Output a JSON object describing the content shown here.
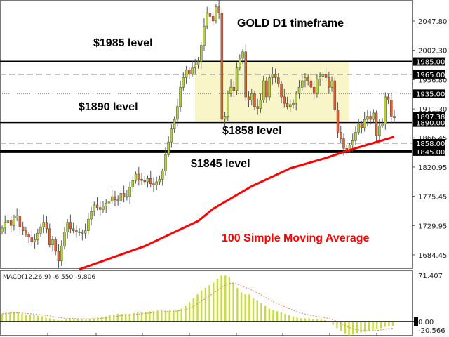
{
  "chart_data": {
    "type": "candlestick",
    "title": "GOLD D1 timeframe",
    "symbol": "GOLD",
    "timeframe": "D1",
    "price_axis": {
      "ylim": [
        1662,
        2075
      ],
      "ticks": [
        "2047.80",
        "2002.30",
        "1956.80",
        "1911.30",
        "1866.45",
        "1820.95",
        "1775.45",
        "1729.95",
        "1684.45"
      ]
    },
    "closes": [
      1726,
      1735,
      1738,
      1730,
      1742,
      1745,
      1728,
      1722,
      1716,
      1712,
      1705,
      1708,
      1718,
      1728,
      1735,
      1725,
      1700,
      1708,
      1690,
      1675,
      1698,
      1720,
      1735,
      1725,
      1722,
      1720,
      1720,
      1718,
      1722,
      1740,
      1752,
      1762,
      1758,
      1755,
      1760,
      1765,
      1768,
      1775,
      1770,
      1768,
      1780,
      1775,
      1775,
      1790,
      1800,
      1810,
      1802,
      1800,
      1798,
      1803,
      1795,
      1793,
      1798,
      1802,
      1815,
      1840,
      1860,
      1880,
      1895,
      1915,
      1945,
      1960,
      1972,
      1965,
      1975,
      1980,
      1985,
      2010,
      2040,
      2060,
      2055,
      2048,
      2070,
      2060,
      1895,
      1900,
      1935,
      1945,
      1940,
      1975,
      1990,
      2000,
      1930,
      1925,
      1935,
      1915,
      1912,
      1925,
      1955,
      1930,
      1960,
      1965,
      1960,
      1950,
      1930,
      1920,
      1915,
      1918,
      1920,
      1935,
      1945,
      1955,
      1960,
      1955,
      1945,
      1935,
      1958,
      1962,
      1965,
      1960,
      1945,
      1955,
      1910,
      1875,
      1865,
      1850,
      1848,
      1855,
      1862,
      1875,
      1888,
      1882,
      1895,
      1900,
      1895,
      1905,
      1870,
      1885,
      1888,
      1930,
      1925,
      1900,
      1897.38
    ],
    "sma_100": {
      "label": "100 Simple Moving Average",
      "color": "#ff0000",
      "knots": [
        [
          37,
          1662
        ],
        [
          68,
          1698
        ],
        [
          94,
          1737
        ],
        [
          101,
          1756
        ],
        [
          119,
          1791
        ],
        [
          137,
          1819
        ],
        [
          155,
          1835
        ],
        [
          164,
          1846
        ],
        [
          176,
          1857
        ],
        [
          187,
          1868
        ]
      ]
    },
    "levels": [
      {
        "price": 1985.0,
        "label": "1985.00",
        "style": "solid",
        "annotation": "$1985 level"
      },
      {
        "price": 1965.0,
        "label": "1965.00",
        "style": "dashed"
      },
      {
        "price": 1935.0,
        "label": "1935.00",
        "style": "dotted"
      },
      {
        "price": 1890.0,
        "label": "1890.00",
        "style": "solid",
        "annotation": "$1890 level"
      },
      {
        "price": 1858.0,
        "label": "1858.00",
        "style": "dashed",
        "annotation": "$1858 level"
      },
      {
        "price": 1845.0,
        "label": "1845.00",
        "style": "thick",
        "annotation": "$1845 level"
      }
    ],
    "current_price": "1897.38",
    "range_box": {
      "top": 1985,
      "bottom": 1889,
      "color": "#f8f6c8"
    },
    "macd": {
      "label": "MACD(12,26,9) -6.550 -9.806",
      "ticks": [
        "71.407",
        "0.00",
        "-20.566"
      ],
      "ylim": [
        -26,
        78
      ],
      "histogram": [
        12,
        14,
        15,
        15,
        14,
        12,
        10,
        10,
        10,
        9,
        8,
        6,
        5,
        3,
        2,
        2,
        3,
        4,
        4,
        4,
        4,
        3,
        4,
        5,
        6,
        7,
        8,
        10,
        11,
        12,
        12,
        12,
        12,
        13,
        14,
        14,
        15,
        16,
        16,
        17,
        17,
        17,
        17,
        17,
        18,
        20,
        24,
        30,
        36,
        42,
        48,
        52,
        56,
        60,
        66,
        71,
        71,
        68,
        60,
        52,
        45,
        42,
        42,
        36,
        32,
        28,
        24,
        20,
        18,
        16,
        14,
        12,
        10,
        8,
        6,
        5,
        5,
        5,
        4,
        4,
        3,
        2,
        0,
        -5,
        -10,
        -15,
        -19,
        -21,
        -20,
        -18,
        -17,
        -16,
        -15,
        -14,
        -12,
        -10,
        -8,
        -7,
        -6.5
      ]
    },
    "colors": {
      "bull": "#b5d334",
      "bear": "#e8612c",
      "sma": "#ff0000",
      "annotation_sma": "#ff0000",
      "macd_bar": "#c6dc3c",
      "signal": "#f08060"
    }
  }
}
